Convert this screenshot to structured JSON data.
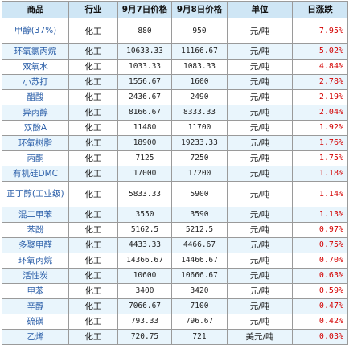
{
  "table": {
    "headers": [
      "商品",
      "行业",
      "9月7日价格",
      "9月8日价格",
      "单位",
      "日涨跌"
    ],
    "rows": [
      {
        "name": "甲醇(37%)",
        "industry": "化工",
        "price_sep7": "880",
        "price_sep8": "950",
        "unit": "元/吨",
        "change": "7.95%"
      },
      {
        "name": "环氧氯丙烷",
        "industry": "化工",
        "price_sep7": "10633.33",
        "price_sep8": "11166.67",
        "unit": "元/吨",
        "change": "5.02%"
      },
      {
        "name": "双氧水",
        "industry": "化工",
        "price_sep7": "1033.33",
        "price_sep8": "1083.33",
        "unit": "元/吨",
        "change": "4.84%"
      },
      {
        "name": "小苏打",
        "industry": "化工",
        "price_sep7": "1556.67",
        "price_sep8": "1600",
        "unit": "元/吨",
        "change": "2.78%"
      },
      {
        "name": "醋酸",
        "industry": "化工",
        "price_sep7": "2436.67",
        "price_sep8": "2490",
        "unit": "元/吨",
        "change": "2.19%"
      },
      {
        "name": "异丙醇",
        "industry": "化工",
        "price_sep7": "8166.67",
        "price_sep8": "8333.33",
        "unit": "元/吨",
        "change": "2.04%"
      },
      {
        "name": "双酚A",
        "industry": "化工",
        "price_sep7": "11480",
        "price_sep8": "11700",
        "unit": "元/吨",
        "change": "1.92%"
      },
      {
        "name": "环氧树脂",
        "industry": "化工",
        "price_sep7": "18900",
        "price_sep8": "19233.33",
        "unit": "元/吨",
        "change": "1.76%"
      },
      {
        "name": "丙酮",
        "industry": "化工",
        "price_sep7": "7125",
        "price_sep8": "7250",
        "unit": "元/吨",
        "change": "1.75%"
      },
      {
        "name": "有机硅DMC",
        "industry": "化工",
        "price_sep7": "17000",
        "price_sep8": "17200",
        "unit": "元/吨",
        "change": "1.18%"
      },
      {
        "name": "正丁醇(工业级)",
        "industry": "化工",
        "price_sep7": "5833.33",
        "price_sep8": "5900",
        "unit": "元/吨",
        "change": "1.14%"
      },
      {
        "name": "混二甲苯",
        "industry": "化工",
        "price_sep7": "3550",
        "price_sep8": "3590",
        "unit": "元/吨",
        "change": "1.13%"
      },
      {
        "name": "苯酚",
        "industry": "化工",
        "price_sep7": "5162.5",
        "price_sep8": "5212.5",
        "unit": "元/吨",
        "change": "0.97%"
      },
      {
        "name": "多聚甲醛",
        "industry": "化工",
        "price_sep7": "4433.33",
        "price_sep8": "4466.67",
        "unit": "元/吨",
        "change": "0.75%"
      },
      {
        "name": "环氧丙烷",
        "industry": "化工",
        "price_sep7": "14366.67",
        "price_sep8": "14466.67",
        "unit": "元/吨",
        "change": "0.70%"
      },
      {
        "name": "活性炭",
        "industry": "化工",
        "price_sep7": "10600",
        "price_sep8": "10666.67",
        "unit": "元/吨",
        "change": "0.63%"
      },
      {
        "name": "甲苯",
        "industry": "化工",
        "price_sep7": "3400",
        "price_sep8": "3420",
        "unit": "元/吨",
        "change": "0.59%"
      },
      {
        "name": "辛醇",
        "industry": "化工",
        "price_sep7": "7066.67",
        "price_sep8": "7100",
        "unit": "元/吨",
        "change": "0.47%"
      },
      {
        "name": "硫磺",
        "industry": "化工",
        "price_sep7": "793.33",
        "price_sep8": "796.67",
        "unit": "元/吨",
        "change": "0.42%"
      },
      {
        "name": "乙烯",
        "industry": "化工",
        "price_sep7": "720.75",
        "price_sep8": "721",
        "unit": "美元/吨",
        "change": "0.03%"
      }
    ]
  },
  "colors": {
    "header_bg": "#cfe6f5",
    "row_alt_bg": "#e9f5fc",
    "name_text": "#2a5ea8",
    "change_text": "#d40000"
  }
}
